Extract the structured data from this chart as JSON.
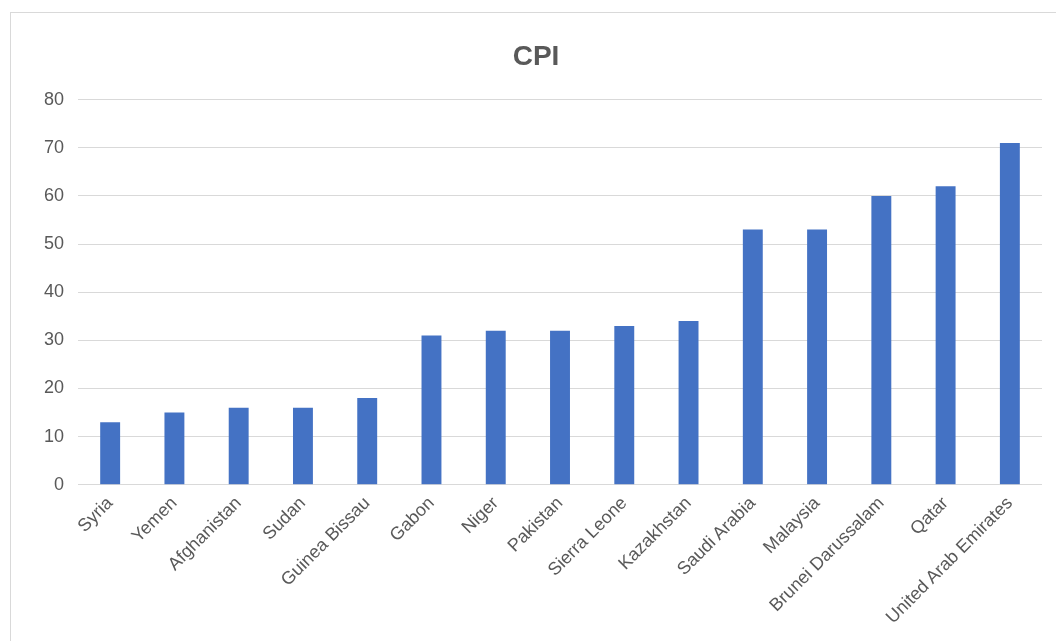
{
  "chart_data": {
    "type": "bar",
    "title": "CPI",
    "categories": [
      "Syria",
      "Yemen",
      "Afghanistan",
      "Sudan",
      "Guinea Bissau",
      "Gabon",
      "Niger",
      "Pakistan",
      "Sierra Leone",
      "Kazakhstan",
      "Saudi Arabia",
      "Malaysia",
      "Brunei Darussalam",
      "Qatar",
      "United Arab Emirates"
    ],
    "values": [
      13,
      15,
      16,
      16,
      18,
      31,
      32,
      32,
      33,
      34,
      53,
      53,
      60,
      62,
      71
    ],
    "color": "#4472c4",
    "ylim": [
      0,
      80
    ],
    "yticks": [
      0,
      10,
      20,
      30,
      40,
      50,
      60,
      70,
      80
    ],
    "grid": "y"
  }
}
